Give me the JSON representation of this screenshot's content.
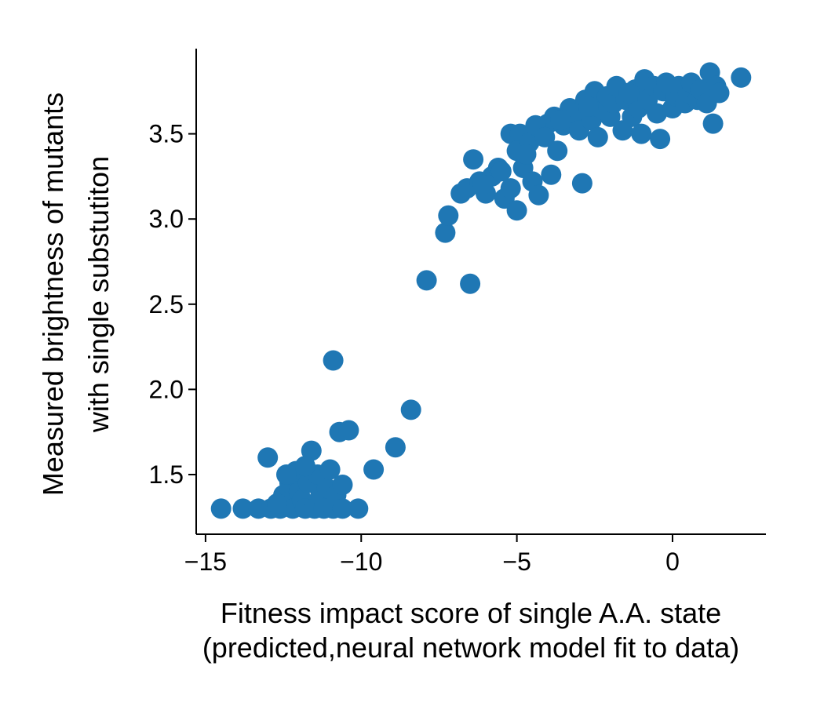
{
  "chart_data": {
    "type": "scatter",
    "title": "",
    "xlabel_lines": [
      "Fitness impact score of single A.A. state",
      "(predicted,neural network model fit to data)"
    ],
    "ylabel_lines": [
      "Measured brightness of mutants",
      "with single substutiton"
    ],
    "xlim": [
      -15.3,
      3.0
    ],
    "ylim": [
      1.15,
      4.0
    ],
    "xticks": [
      -15,
      -10,
      -5,
      0
    ],
    "xtick_labels": [
      "−15",
      "−10",
      "−5",
      "0"
    ],
    "yticks": [
      1.5,
      2.0,
      2.5,
      3.0,
      3.5
    ],
    "ytick_labels": [
      "1.5",
      "2.0",
      "2.5",
      "3.0",
      "3.5"
    ],
    "grid": false,
    "marker_color": "#1f77b4",
    "points": [
      [
        -14.5,
        1.3
      ],
      [
        -13.8,
        1.3
      ],
      [
        -13.3,
        1.3
      ],
      [
        -13.0,
        1.6
      ],
      [
        -12.9,
        1.3
      ],
      [
        -12.6,
        1.3
      ],
      [
        -12.5,
        1.38
      ],
      [
        -12.3,
        1.45
      ],
      [
        -12.2,
        1.3
      ],
      [
        -12.1,
        1.52
      ],
      [
        -12.0,
        1.4
      ],
      [
        -11.9,
        1.35
      ],
      [
        -11.8,
        1.3
      ],
      [
        -11.7,
        1.45
      ],
      [
        -11.6,
        1.64
      ],
      [
        -11.5,
        1.3
      ],
      [
        -11.4,
        1.5
      ],
      [
        -11.3,
        1.38
      ],
      [
        -11.2,
        1.3
      ],
      [
        -11.1,
        1.42
      ],
      [
        -11.0,
        1.53
      ],
      [
        -10.9,
        1.3
      ],
      [
        -10.8,
        1.38
      ],
      [
        -10.6,
        1.44
      ],
      [
        -10.6,
        1.3
      ],
      [
        -10.7,
        1.75
      ],
      [
        -10.4,
        1.76
      ],
      [
        -10.1,
        1.3
      ],
      [
        -10.9,
        2.17
      ],
      [
        -12.4,
        1.5
      ],
      [
        -11.8,
        1.55
      ],
      [
        -12.7,
        1.33
      ],
      [
        -9.6,
        1.53
      ],
      [
        -8.9,
        1.66
      ],
      [
        -8.4,
        1.88
      ],
      [
        -7.9,
        2.64
      ],
      [
        -6.5,
        2.62
      ],
      [
        -7.3,
        2.92
      ],
      [
        -7.2,
        3.02
      ],
      [
        -6.8,
        3.15
      ],
      [
        -6.6,
        3.18
      ],
      [
        -6.4,
        3.35
      ],
      [
        -6.2,
        3.22
      ],
      [
        -6.0,
        3.15
      ],
      [
        -5.8,
        3.25
      ],
      [
        -5.6,
        3.3
      ],
      [
        -5.4,
        3.12
      ],
      [
        -5.2,
        3.18
      ],
      [
        -5.0,
        3.05
      ],
      [
        -5.2,
        3.5
      ],
      [
        -4.9,
        3.5
      ],
      [
        -5.0,
        3.4
      ],
      [
        -4.8,
        3.3
      ],
      [
        -4.6,
        3.45
      ],
      [
        -4.5,
        3.22
      ],
      [
        -4.3,
        3.14
      ],
      [
        -4.2,
        3.5
      ],
      [
        -4.0,
        3.56
      ],
      [
        -3.9,
        3.26
      ],
      [
        -3.8,
        3.6
      ],
      [
        -3.7,
        3.4
      ],
      [
        -4.4,
        3.55
      ],
      [
        -4.1,
        3.48
      ],
      [
        -3.5,
        3.55
      ],
      [
        -3.3,
        3.65
      ],
      [
        -3.1,
        3.62
      ],
      [
        -3.0,
        3.52
      ],
      [
        -2.9,
        3.21
      ],
      [
        -2.8,
        3.7
      ],
      [
        -2.6,
        3.58
      ],
      [
        -2.5,
        3.75
      ],
      [
        -2.4,
        3.48
      ],
      [
        -2.3,
        3.65
      ],
      [
        -2.1,
        3.72
      ],
      [
        -2.0,
        3.6
      ],
      [
        -1.9,
        3.68
      ],
      [
        -1.8,
        3.78
      ],
      [
        -1.6,
        3.52
      ],
      [
        -1.5,
        3.7
      ],
      [
        -1.3,
        3.6
      ],
      [
        -1.2,
        3.76
      ],
      [
        -1.1,
        3.65
      ],
      [
        -1.0,
        3.5
      ],
      [
        -0.9,
        3.82
      ],
      [
        -0.8,
        3.7
      ],
      [
        -0.6,
        3.78
      ],
      [
        -0.5,
        3.62
      ],
      [
        -0.4,
        3.47
      ],
      [
        -0.3,
        3.75
      ],
      [
        -0.2,
        3.8
      ],
      [
        0.0,
        3.65
      ],
      [
        0.1,
        3.72
      ],
      [
        0.2,
        3.78
      ],
      [
        0.4,
        3.68
      ],
      [
        0.5,
        3.74
      ],
      [
        0.6,
        3.8
      ],
      [
        0.8,
        3.7
      ],
      [
        0.9,
        3.76
      ],
      [
        1.1,
        3.68
      ],
      [
        1.2,
        3.86
      ],
      [
        1.3,
        3.56
      ],
      [
        1.4,
        3.78
      ],
      [
        1.5,
        3.74
      ],
      [
        2.2,
        3.83
      ],
      [
        -3.6,
        3.58
      ],
      [
        -4.7,
        3.38
      ],
      [
        -5.5,
        3.28
      ],
      [
        -6.1,
        3.2
      ],
      [
        -1.4,
        3.74
      ],
      [
        -2.7,
        3.66
      ]
    ]
  }
}
